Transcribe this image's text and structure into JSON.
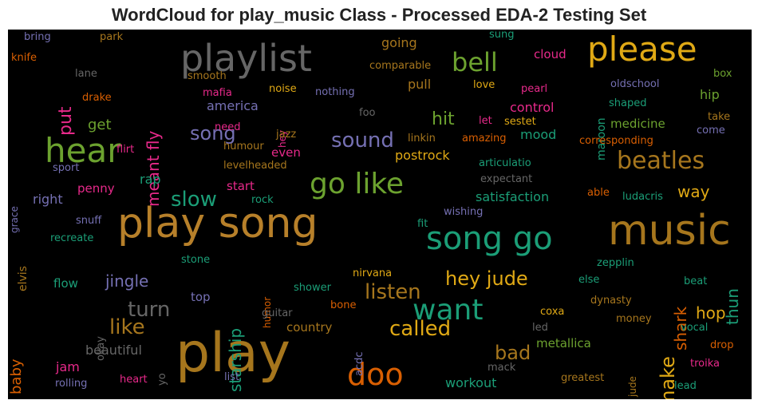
{
  "title": "WordCloud for play_music Class - Processed EDA-2 Testing Set",
  "colors": {
    "background": "#000000",
    "orange": "#b7802a",
    "gold": "#e0a915",
    "green": "#6ca22f",
    "teal": "#1b9e77",
    "purple": "#7570b3",
    "pink": "#e7298a",
    "grey": "#666666",
    "brown": "#a6761d",
    "darkorange": "#d95f02"
  },
  "words": [
    {
      "text": "play",
      "color": "#a6761d"
    },
    {
      "text": "play song",
      "color": "#b7802a"
    },
    {
      "text": "music",
      "color": "#a6761d"
    },
    {
      "text": "song go",
      "color": "#1b9e77"
    },
    {
      "text": "playlist",
      "color": "#666666"
    },
    {
      "text": "please",
      "color": "#e0a915"
    },
    {
      "text": "hear",
      "color": "#6ca22f"
    },
    {
      "text": "go like",
      "color": "#6ca22f"
    },
    {
      "text": "doo",
      "color": "#d95f02"
    },
    {
      "text": "want",
      "color": "#1b9e77"
    },
    {
      "text": "bell",
      "color": "#6ca22f"
    },
    {
      "text": "beatles",
      "color": "#a6761d"
    },
    {
      "text": "slow",
      "color": "#1b9e77"
    },
    {
      "text": "hey jude",
      "color": "#e0a915"
    },
    {
      "text": "listen",
      "color": "#a6761d"
    },
    {
      "text": "called",
      "color": "#e0a915"
    },
    {
      "text": "sound",
      "color": "#7570b3"
    },
    {
      "text": "turn",
      "color": "#666666"
    },
    {
      "text": "like",
      "color": "#a6761d"
    },
    {
      "text": "make",
      "color": "#e0a915"
    },
    {
      "text": "bad",
      "color": "#a6761d"
    },
    {
      "text": "meant fly",
      "color": "#e7298a"
    },
    {
      "text": "put",
      "color": "#e7298a"
    },
    {
      "text": "song",
      "color": "#7570b3"
    },
    {
      "text": "jingle",
      "color": "#7570b3"
    },
    {
      "text": "hit",
      "color": "#6ca22f"
    },
    {
      "text": "starship",
      "color": "#1b9e77"
    },
    {
      "text": "shark",
      "color": "#d95f02"
    },
    {
      "text": "thun",
      "color": "#1b9e77"
    },
    {
      "text": "way",
      "color": "#e0a915"
    },
    {
      "text": "hop",
      "color": "#e0a915"
    },
    {
      "text": "baby",
      "color": "#d95f02"
    },
    {
      "text": "get",
      "color": "#6ca22f"
    },
    {
      "text": "going",
      "color": "#a6761d"
    },
    {
      "text": "pull",
      "color": "#a6761d"
    },
    {
      "text": "cloud",
      "color": "#e7298a"
    },
    {
      "text": "control",
      "color": "#e7298a"
    },
    {
      "text": "hip",
      "color": "#6ca22f"
    },
    {
      "text": "mood",
      "color": "#1b9e77"
    },
    {
      "text": "medicine",
      "color": "#6ca22f"
    },
    {
      "text": "postrock",
      "color": "#e0a915"
    },
    {
      "text": "satisfaction",
      "color": "#1b9e77"
    },
    {
      "text": "metallica",
      "color": "#6ca22f"
    },
    {
      "text": "country",
      "color": "#a6761d"
    },
    {
      "text": "beautiful",
      "color": "#666666"
    },
    {
      "text": "workout",
      "color": "#1b9e77"
    },
    {
      "text": "jam",
      "color": "#e7298a"
    },
    {
      "text": "america",
      "color": "#7570b3"
    },
    {
      "text": "flow",
      "color": "#1b9e77"
    },
    {
      "text": "right",
      "color": "#7570b3"
    },
    {
      "text": "penny",
      "color": "#e7298a"
    },
    {
      "text": "rap",
      "color": "#1b9e77"
    },
    {
      "text": "start",
      "color": "#e7298a"
    },
    {
      "text": "top",
      "color": "#7570b3"
    },
    {
      "text": "even",
      "color": "#e7298a"
    },
    {
      "text": "maroon",
      "color": "#1b9e77"
    },
    {
      "text": "bring",
      "color": "#7570b3"
    },
    {
      "text": "park",
      "color": "#a6761d"
    },
    {
      "text": "knife",
      "color": "#d95f02"
    },
    {
      "text": "lane",
      "color": "#666666"
    },
    {
      "text": "drake",
      "color": "#d95f02"
    },
    {
      "text": "smooth",
      "color": "#a6761d"
    },
    {
      "text": "mafia",
      "color": "#e7298a"
    },
    {
      "text": "noise",
      "color": "#e0a915"
    },
    {
      "text": "hey",
      "color": "#e7298a"
    },
    {
      "text": "nothing",
      "color": "#7570b3"
    },
    {
      "text": "comparable",
      "color": "#a6761d"
    },
    {
      "text": "sung",
      "color": "#1b9e77"
    },
    {
      "text": "love",
      "color": "#e0a915"
    },
    {
      "text": "pearl",
      "color": "#e7298a"
    },
    {
      "text": "oldschool",
      "color": "#7570b3"
    },
    {
      "text": "box",
      "color": "#6ca22f"
    },
    {
      "text": "shaped",
      "color": "#1b9e77"
    },
    {
      "text": "take",
      "color": "#a6761d"
    },
    {
      "text": "come",
      "color": "#7570b3"
    },
    {
      "text": "let",
      "color": "#e7298a"
    },
    {
      "text": "sestet",
      "color": "#e0a915"
    },
    {
      "text": "foo",
      "color": "#666666"
    },
    {
      "text": "need",
      "color": "#e7298a"
    },
    {
      "text": "jazz",
      "color": "#a6761d"
    },
    {
      "text": "humour",
      "color": "#a6761d"
    },
    {
      "text": "linkin",
      "color": "#a6761d"
    },
    {
      "text": "amazing",
      "color": "#d95f02"
    },
    {
      "text": "corresponding",
      "color": "#d95f02"
    },
    {
      "text": "flirt",
      "color": "#e7298a"
    },
    {
      "text": "sport",
      "color": "#7570b3"
    },
    {
      "text": "levelheaded",
      "color": "#a6761d"
    },
    {
      "text": "articulatio",
      "color": "#1b9e77"
    },
    {
      "text": "expectant",
      "color": "#666666"
    },
    {
      "text": "ludacris",
      "color": "#1b9e77"
    },
    {
      "text": "able",
      "color": "#d95f02"
    },
    {
      "text": "grace",
      "color": "#7570b3"
    },
    {
      "text": "elvis",
      "color": "#a6761d"
    },
    {
      "text": "rock",
      "color": "#1b9e77"
    },
    {
      "text": "wishing",
      "color": "#7570b3"
    },
    {
      "text": "snuff",
      "color": "#7570b3"
    },
    {
      "text": "fit",
      "color": "#1b9e77"
    },
    {
      "text": "recreate",
      "color": "#1b9e77"
    },
    {
      "text": "stone",
      "color": "#1b9e77"
    },
    {
      "text": "zepplin",
      "color": "#1b9e77"
    },
    {
      "text": "nirvana",
      "color": "#e0a915"
    },
    {
      "text": "humor",
      "color": "#d95f02"
    },
    {
      "text": "else",
      "color": "#1b9e77"
    },
    {
      "text": "beat",
      "color": "#1b9e77"
    },
    {
      "text": "shower",
      "color": "#1b9e77"
    },
    {
      "text": "dynasty",
      "color": "#a6761d"
    },
    {
      "text": "guitar",
      "color": "#666666"
    },
    {
      "text": "bone",
      "color": "#d95f02"
    },
    {
      "text": "coxa",
      "color": "#e0a915"
    },
    {
      "text": "okay",
      "color": "#666666"
    },
    {
      "text": "money",
      "color": "#a6761d"
    },
    {
      "text": "vocal",
      "color": "#1b9e77"
    },
    {
      "text": "led",
      "color": "#666666"
    },
    {
      "text": "drop",
      "color": "#d95f02"
    },
    {
      "text": "acdc",
      "color": "#7570b3"
    },
    {
      "text": "jude",
      "color": "#a6761d"
    },
    {
      "text": "yo",
      "color": "#666666"
    },
    {
      "text": "heart",
      "color": "#e7298a"
    },
    {
      "text": "list",
      "color": "#7570b3"
    },
    {
      "text": "mack",
      "color": "#666666"
    },
    {
      "text": "troika",
      "color": "#e7298a"
    },
    {
      "text": "rolling",
      "color": "#7570b3"
    },
    {
      "text": "greatest",
      "color": "#a6761d"
    },
    {
      "text": "lead",
      "color": "#1b9e77"
    }
  ]
}
